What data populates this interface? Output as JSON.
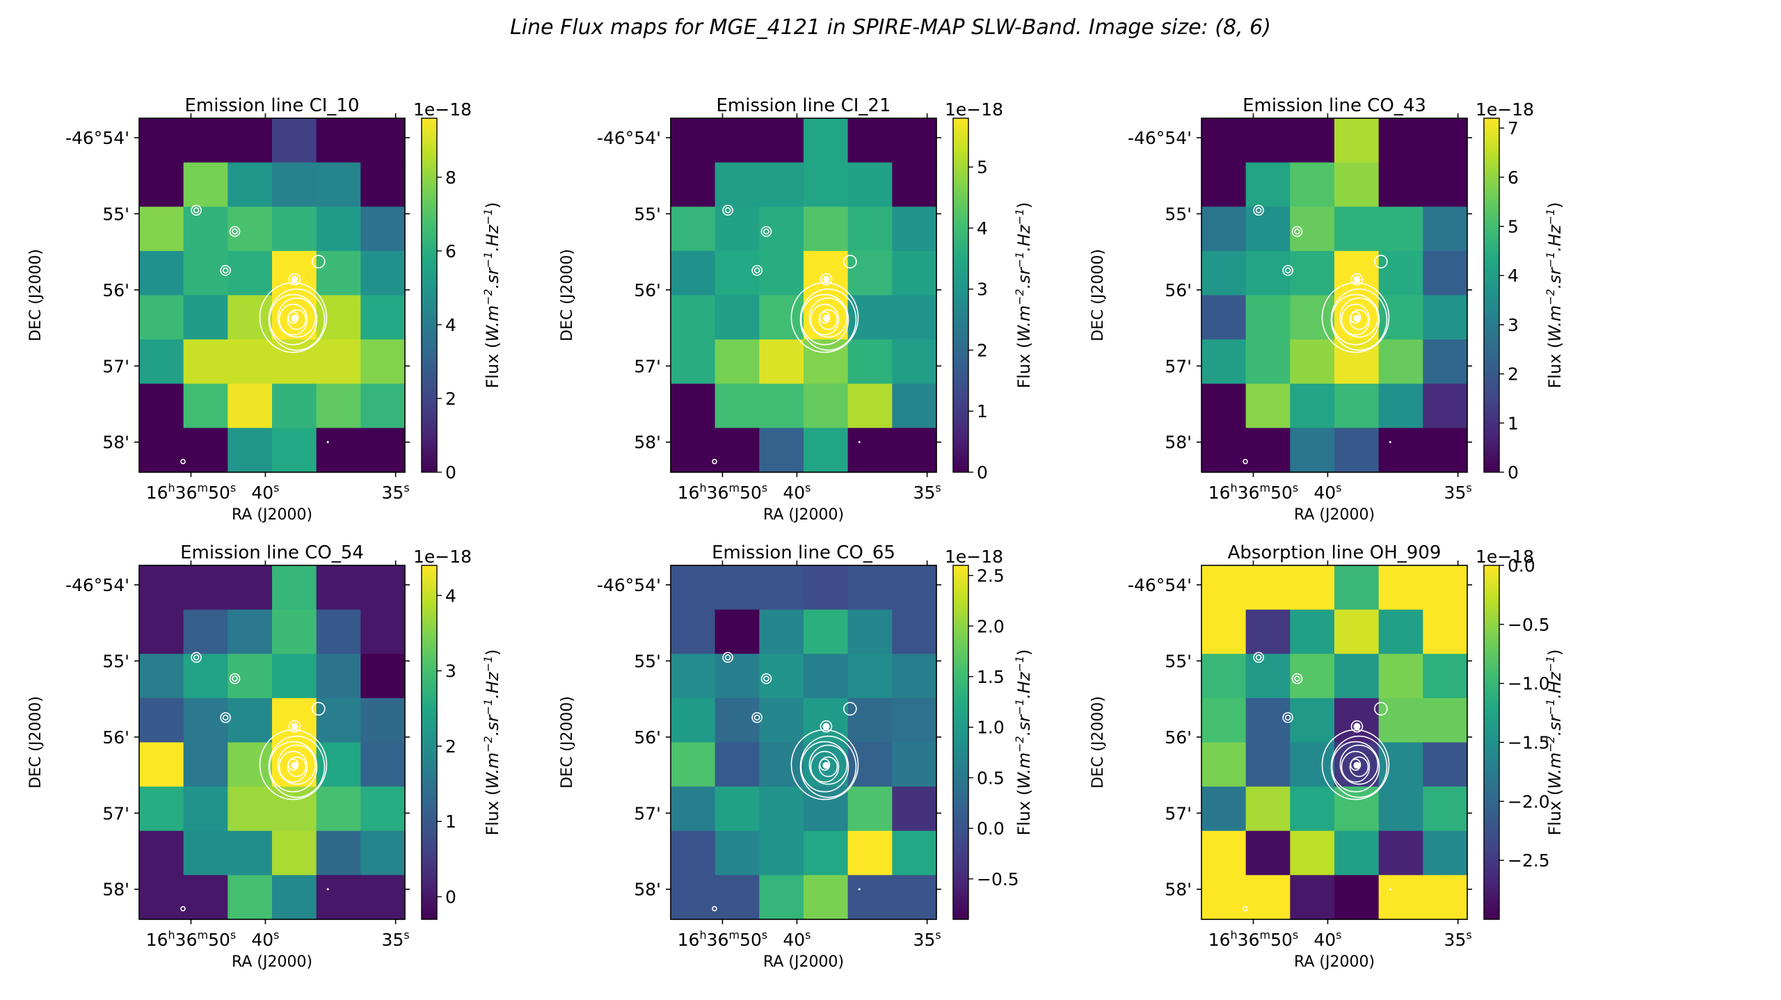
{
  "figure": {
    "title": "Line Flux maps for MGE_4121 in SPIRE-MAP SLW-Band. Image size: (8, 6)"
  },
  "chart_data": [
    {
      "type": "heatmap",
      "title": "Emission line CI_10",
      "xlabel": "RA (J2000)",
      "ylabel": "DEC (J2000)",
      "x_ticks": [
        "16h36m50s",
        "40s",
        "35s"
      ],
      "y_ticks": [
        "-46°54'",
        "55'",
        "56'",
        "57'",
        "58'"
      ],
      "colorbar": {
        "label": "Flux (W.m-2.sr-1.Hz-1)",
        "offset": "1e−18",
        "ticks": [
          "0",
          "2",
          "4",
          "6",
          "8"
        ],
        "vmin": 0,
        "vmax": 9.6
      },
      "grid": [
        [
          0,
          0,
          0,
          1.8,
          0,
          0
        ],
        [
          0,
          7.6,
          5.0,
          4.2,
          4.3,
          0
        ],
        [
          7.8,
          6.2,
          6.8,
          6.2,
          5.2,
          3.6
        ],
        [
          4.8,
          6.2,
          6.0,
          9.6,
          6.5,
          4.8
        ],
        [
          6.5,
          5.2,
          8.4,
          9.6,
          8.5,
          5.8
        ],
        [
          5.4,
          8.8,
          8.8,
          8.8,
          8.8,
          7.8
        ],
        [
          0,
          6.6,
          9.4,
          6.2,
          7.2,
          6.3
        ],
        [
          0,
          0,
          5.0,
          5.8,
          0,
          0
        ]
      ]
    },
    {
      "type": "heatmap",
      "title": "Emission line CI_21",
      "xlabel": "RA (J2000)",
      "ylabel": "DEC (J2000)",
      "x_ticks": [
        "16h36m50s",
        "40s",
        "35s"
      ],
      "y_ticks": [
        "-46°54'",
        "55'",
        "56'",
        "57'",
        "58'"
      ],
      "colorbar": {
        "label": "Flux (W.m-2.sr-1.Hz-1)",
        "offset": "1e−18",
        "ticks": [
          "0",
          "1",
          "2",
          "3",
          "4",
          "5"
        ],
        "vmin": 0,
        "vmax": 5.8
      },
      "grid": [
        [
          0,
          0,
          0,
          3.4,
          0,
          0
        ],
        [
          0,
          3.2,
          3.2,
          3.4,
          3.3,
          0
        ],
        [
          3.8,
          3.3,
          3.6,
          4.2,
          3.7,
          3.0
        ],
        [
          2.9,
          3.5,
          3.6,
          5.8,
          3.8,
          3.3
        ],
        [
          3.6,
          3.2,
          4.0,
          5.8,
          3.0,
          3.0
        ],
        [
          3.6,
          4.6,
          5.5,
          4.7,
          3.7,
          3.2
        ],
        [
          0,
          4.0,
          4.0,
          4.4,
          5.1,
          2.6
        ],
        [
          0,
          0,
          1.8,
          3.4,
          0,
          0
        ]
      ]
    },
    {
      "type": "heatmap",
      "title": "Emission line CO_43",
      "xlabel": "RA (J2000)",
      "ylabel": "DEC (J2000)",
      "x_ticks": [
        "16h36m50s",
        "40s",
        "35s"
      ],
      "y_ticks": [
        "-46°54'",
        "55'",
        "56'",
        "57'",
        "58'"
      ],
      "colorbar": {
        "label": "Flux (W.m-2.sr-1.Hz-1)",
        "offset": "1e−18",
        "ticks": [
          "0",
          "1",
          "2",
          "3",
          "4",
          "5",
          "6",
          "7"
        ],
        "vmin": 0,
        "vmax": 7.2
      },
      "grid": [
        [
          0,
          0,
          0,
          6.3,
          0,
          0
        ],
        [
          0,
          4.2,
          5.2,
          6.0,
          0,
          0
        ],
        [
          2.8,
          3.6,
          5.5,
          4.6,
          4.6,
          2.8
        ],
        [
          3.8,
          4.2,
          4.5,
          7.2,
          4.4,
          2.2
        ],
        [
          2.0,
          4.9,
          5.4,
          7.2,
          4.6,
          3.7
        ],
        [
          4.0,
          4.9,
          6.0,
          7.0,
          5.5,
          2.4
        ],
        [
          0,
          5.9,
          4.2,
          4.8,
          3.6,
          0.9
        ],
        [
          0,
          0,
          2.8,
          2.0,
          0,
          0
        ]
      ]
    },
    {
      "type": "heatmap",
      "title": "Emission line CO_54",
      "xlabel": "RA (J2000)",
      "ylabel": "DEC (J2000)",
      "x_ticks": [
        "16h36m50s",
        "40s",
        "35s"
      ],
      "y_ticks": [
        "-46°54'",
        "55'",
        "56'",
        "57'",
        "58'"
      ],
      "colorbar": {
        "label": "Flux (W.m-2.sr-1.Hz-1)",
        "offset": "1e−18",
        "ticks": [
          "0",
          "1",
          "2",
          "3",
          "4"
        ],
        "vmin": -0.3,
        "vmax": 4.4
      },
      "grid": [
        [
          0,
          0,
          0,
          2.8,
          0,
          0
        ],
        [
          0,
          1.1,
          1.6,
          2.9,
          1.0,
          0
        ],
        [
          1.7,
          2.4,
          2.9,
          2.5,
          1.5,
          -0.3
        ],
        [
          1.0,
          1.6,
          1.9,
          4.4,
          1.7,
          1.3
        ],
        [
          4.4,
          1.6,
          3.5,
          4.4,
          2.5,
          1.2
        ],
        [
          2.6,
          2.1,
          3.7,
          3.7,
          3.0,
          2.6
        ],
        [
          0,
          2.0,
          2.0,
          3.8,
          1.3,
          1.8
        ],
        [
          0,
          0,
          3.0,
          1.9,
          0,
          0
        ]
      ]
    },
    {
      "type": "heatmap",
      "title": "Emission line CO_65",
      "xlabel": "RA (J2000)",
      "ylabel": "DEC (J2000)",
      "x_ticks": [
        "16h36m50s",
        "40s",
        "35s"
      ],
      "y_ticks": [
        "-46°54'",
        "55'",
        "56'",
        "57'",
        "58'"
      ],
      "colorbar": {
        "label": "Flux (W.m-2.sr-1.Hz-1)",
        "offset": "1e−18",
        "ticks": [
          "−0.5",
          "0.0",
          "0.5",
          "1.0",
          "1.5",
          "2.0",
          "2.5"
        ],
        "vmin": -0.9,
        "vmax": 2.6
      },
      "grid": [
        [
          0.0,
          0.0,
          0.0,
          -0.1,
          0.0,
          0.0
        ],
        [
          0.0,
          -0.9,
          0.7,
          1.3,
          0.7,
          0.0
        ],
        [
          0.8,
          0.6,
          0.9,
          0.6,
          0.8,
          0.6
        ],
        [
          1.0,
          0.3,
          0.7,
          1.0,
          0.3,
          0.4
        ],
        [
          1.6,
          0.1,
          0.6,
          0.9,
          0.2,
          0.5
        ],
        [
          0.6,
          1.1,
          0.9,
          0.7,
          1.6,
          -0.4
        ],
        [
          0.0,
          0.7,
          0.9,
          1.2,
          2.6,
          1.2
        ],
        [
          0.0,
          0.0,
          1.4,
          1.9,
          0.0,
          0.0
        ]
      ]
    },
    {
      "type": "heatmap",
      "title": "Absorption line OH_909",
      "xlabel": "RA (J2000)",
      "ylabel": "DEC (J2000)",
      "x_ticks": [
        "16h36m50s",
        "40s",
        "35s"
      ],
      "y_ticks": [
        "-46°54'",
        "55'",
        "56'",
        "57'",
        "58'"
      ],
      "colorbar": {
        "label": "Flux (W.m-2.sr-1.Hz-1)",
        "offset": "1e−18",
        "ticks": [
          "0.0",
          "−0.5",
          "−1.0",
          "−1.5",
          "−2.0",
          "−2.5"
        ],
        "vmin": -3.0,
        "vmax": 0.0
      },
      "grid": [
        [
          0,
          0,
          0,
          -1.0,
          0,
          0
        ],
        [
          0,
          -2.5,
          -1.3,
          -0.2,
          -1.3,
          0
        ],
        [
          -1.0,
          -1.4,
          -0.8,
          -1.4,
          -0.6,
          -1.1
        ],
        [
          -0.9,
          -2.1,
          -1.4,
          -2.7,
          -0.7,
          -0.7
        ],
        [
          -0.6,
          -2.1,
          -1.6,
          -2.5,
          -1.6,
          -2.2
        ],
        [
          -1.8,
          -0.4,
          -1.2,
          -0.9,
          -1.6,
          -1.1
        ],
        [
          0,
          -2.9,
          -0.3,
          -1.3,
          -2.7,
          -1.6
        ],
        [
          0,
          0,
          -2.8,
          -3.0,
          0,
          0
        ]
      ]
    }
  ]
}
